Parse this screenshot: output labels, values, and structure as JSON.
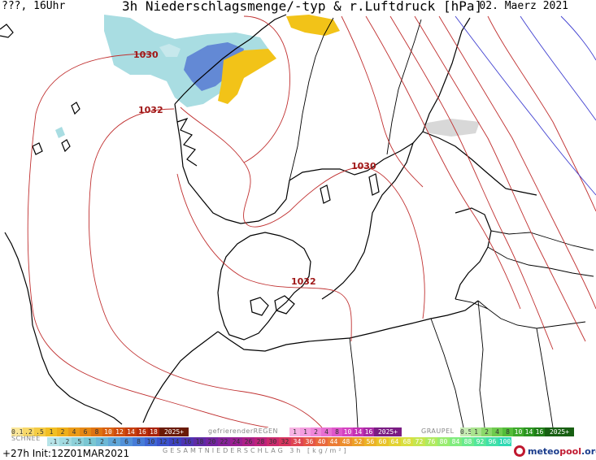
{
  "header": {
    "left": "???, 16Uhr",
    "title": "3h Niederschlagsmenge/-typ & r.Luftdruck [hPa]",
    "date": "02. Maerz 2021"
  },
  "map": {
    "isobar_color": "#c03030",
    "coast_color": "#000000",
    "border_color": "#000000",
    "isobar_labels": [
      "1030",
      "1032",
      "1030",
      "1032"
    ],
    "features": {
      "precip_rain": "#f2c318",
      "precip_snow": "#9fd6dc",
      "precip_snow_heavy": "#5b7fd4",
      "isobar_blue": "#3f3fd0"
    }
  },
  "legend": {
    "rain_values": [
      "0.1",
      ".2",
      ".5",
      "1",
      "2",
      "4",
      "6",
      "8",
      "10",
      "12",
      "14",
      "16",
      "18",
      "2025+"
    ],
    "rain_colors": [
      "#fbe79a",
      "#f7d86a",
      "#f4cb45",
      "#f1bf24",
      "#eeae18",
      "#ea9a16",
      "#e58714",
      "#df7312",
      "#d86010",
      "#cf4e0e",
      "#c53d0c",
      "#b82e0a",
      "#a82208",
      "#6a1a06"
    ],
    "freezing_label": "gefrierenderREGEN",
    "freezing_values": [
      "1",
      "1",
      "2",
      "4",
      "8",
      "10",
      "14",
      "16",
      "2025+"
    ],
    "freezing_colors": [
      "#f7b3e4",
      "#f49de0",
      "#ef86da",
      "#e86fd3",
      "#df57cb",
      "#d443c1",
      "#c432b5",
      "#a928a5",
      "#7a1c83"
    ],
    "graupel_label": "GRAUPEL",
    "graupel_values": [
      "0.5",
      "1",
      "2",
      "4",
      "8",
      "10",
      "14",
      "16",
      "2025+"
    ],
    "graupel_colors": [
      "#c7edb4",
      "#a9e38e",
      "#8bd86a",
      "#6fcb4e",
      "#54bd39",
      "#3da92a",
      "#2a941f",
      "#1f7d17",
      "#175f12"
    ],
    "snow_label": "SCHNEE",
    "snow_values": [
      ".1",
      ".2",
      ".5",
      "1",
      "2",
      "4",
      "6",
      "8",
      "10",
      "12",
      "14",
      "16",
      "18",
      "20",
      "22",
      "24",
      "26",
      "28",
      "30",
      "32",
      "34",
      "36",
      "40",
      "44",
      "48",
      "52",
      "56",
      "60",
      "64",
      "68",
      "72",
      "76",
      "80",
      "84",
      "88",
      "92",
      "96",
      "100"
    ],
    "snow_colors": [
      "#b7e4e8",
      "#a2dbe1",
      "#8dd1d9",
      "#79c6d2",
      "#6cb8d6",
      "#5fa6d8",
      "#5291d9",
      "#477cd8",
      "#3f66d4",
      "#3a52cc",
      "#3c41c1",
      "#4d34b3",
      "#5f2aa5",
      "#7224a0",
      "#86219a",
      "#9a1f92",
      "#ad1f87",
      "#bd227b",
      "#cb2a6d",
      "#d7365f",
      "#df4552",
      "#e55646",
      "#e9683c",
      "#eb7b34",
      "#ec8e2d",
      "#eca028",
      "#ebb226",
      "#e8c329",
      "#e2d232",
      "#d8df3f",
      "#c6e64f",
      "#b0ea5f",
      "#98ec6f",
      "#80ec7e",
      "#69ea8d",
      "#54e69b",
      "#40e0a8",
      "#2fd9b3"
    ],
    "total_label": "GESAMTNIEDERSCHLAG 3h [kg/m²]"
  },
  "footer": {
    "run": "+27h Init:12Z01MAR2021",
    "brand_meteo": "meteo",
    "brand_pool": "pool",
    "brand_org": ".org"
  }
}
